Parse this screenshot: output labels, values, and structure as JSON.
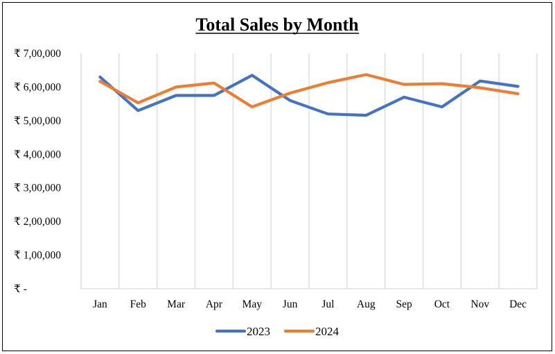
{
  "chart_data": {
    "type": "line",
    "title": "Total Sales by Month",
    "xlabel": "",
    "ylabel": "",
    "categories": [
      "Jan",
      "Feb",
      "Mar",
      "Apr",
      "May",
      "Jun",
      "Jul",
      "Aug",
      "Sep",
      "Oct",
      "Nov",
      "Dec"
    ],
    "series": [
      {
        "name": "2023",
        "color": "#4472C4",
        "values": [
          630000,
          530000,
          575000,
          575000,
          635000,
          560000,
          520000,
          516000,
          570000,
          541000,
          618000,
          602000
        ]
      },
      {
        "name": "2024",
        "color": "#ED7D31",
        "values": [
          617000,
          553000,
          600000,
          612000,
          541000,
          582000,
          613000,
          637000,
          608000,
          610000,
          598000,
          580000
        ]
      }
    ],
    "ylim": [
      0,
      700000
    ],
    "yticks": [
      700000,
      600000,
      500000,
      400000,
      300000,
      200000,
      100000,
      0
    ],
    "ytick_labels": [
      "₹ 7,00,000",
      "₹ 6,00,000",
      "₹ 5,00,000",
      "₹ 4,00,000",
      "₹ 3,00,000",
      "₹ 2,00,000",
      "₹ 1,00,000",
      "₹ -"
    ],
    "grid": "vertical",
    "legend": "bottom-center"
  }
}
